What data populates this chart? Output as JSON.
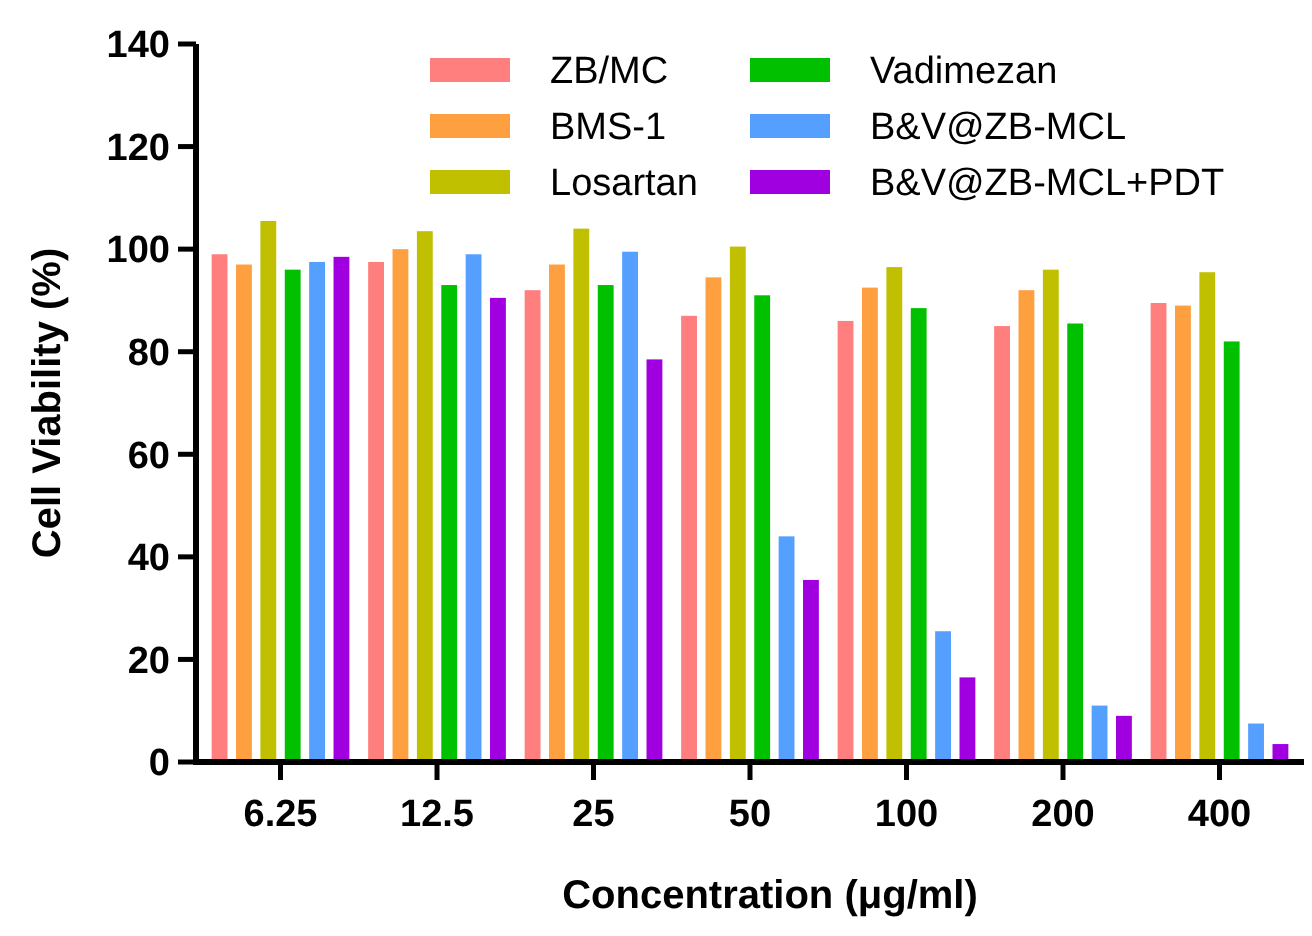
{
  "chart_data": {
    "type": "bar",
    "xlabel": "Concentration (μg/ml)",
    "ylabel": "Cell Viability (%)",
    "categories": [
      "6.25",
      "12.5",
      "25",
      "50",
      "100",
      "200",
      "400"
    ],
    "ylim": [
      0,
      140
    ],
    "yticks": [
      0,
      20,
      40,
      60,
      80,
      100,
      120,
      140
    ],
    "legend": "top right",
    "series": [
      {
        "name": "ZB/MC",
        "color": "#ff7f7f",
        "values": [
          99,
          97.5,
          92,
          87,
          86,
          85,
          89.5
        ]
      },
      {
        "name": "BMS-1",
        "color": "#ffa040",
        "values": [
          97,
          100,
          97,
          94.5,
          92.5,
          92,
          89
        ]
      },
      {
        "name": "Losartan",
        "color": "#c0c000",
        "values": [
          105.5,
          103.5,
          104,
          100.5,
          96.5,
          96,
          95.5
        ]
      },
      {
        "name": "Vadimezan",
        "color": "#00c000",
        "values": [
          96,
          93,
          93,
          91,
          88.5,
          85.5,
          82
        ]
      },
      {
        "name": "B&V@ZB-MCL",
        "color": "#55a0ff",
        "values": [
          97.5,
          99,
          99.5,
          44,
          25.5,
          11,
          7.5
        ]
      },
      {
        "name": "B&V@ZB-MCL+PDT",
        "color": "#a000e0",
        "values": [
          98.5,
          90.5,
          78.5,
          35.5,
          16.5,
          9,
          3.5
        ]
      }
    ]
  }
}
